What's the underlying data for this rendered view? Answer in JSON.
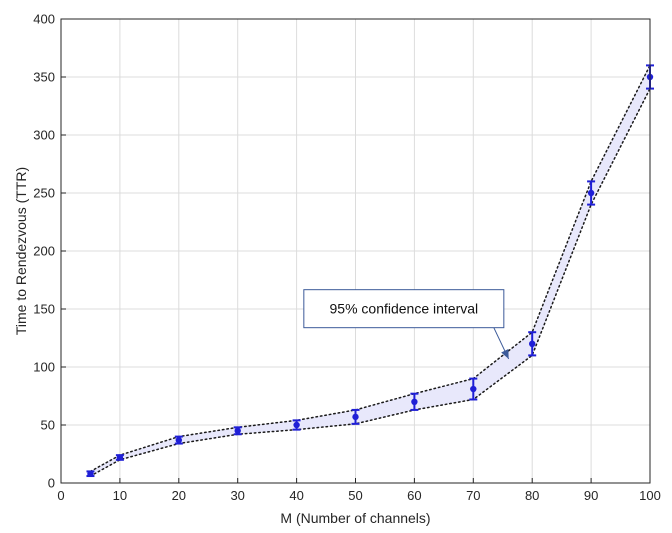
{
  "chart_data": {
    "type": "line",
    "xlabel": "M (Number of channels)",
    "ylabel": "Time to Rendezvous (TTR)",
    "xlim": [
      0,
      100
    ],
    "ylim": [
      0,
      400
    ],
    "xticks": [
      0,
      10,
      20,
      30,
      40,
      50,
      60,
      70,
      80,
      90,
      100
    ],
    "yticks": [
      0,
      50,
      100,
      150,
      200,
      250,
      300,
      350,
      400
    ],
    "grid": true,
    "x": [
      5,
      10,
      20,
      30,
      40,
      50,
      60,
      70,
      80,
      90,
      100
    ],
    "mean": [
      8,
      22,
      37,
      45,
      50,
      57,
      70,
      81,
      120,
      250,
      350
    ],
    "upper": [
      10,
      24,
      40,
      48,
      54,
      63,
      77,
      90,
      130,
      260,
      360
    ],
    "lower": [
      6,
      20,
      34,
      42,
      46,
      51,
      63,
      72,
      110,
      240,
      340
    ],
    "annotation": {
      "text": "95% confidence interval",
      "box_data_x": 47,
      "box_data_y": 152,
      "arrow_to_x": 76,
      "arrow_to_y": 107
    },
    "colors": {
      "marker": "#1f1fd6",
      "band": "#e8e8fb",
      "bound_line": "#1a1a1a",
      "grid": "#dcdcdc",
      "axis": "#262626"
    }
  }
}
